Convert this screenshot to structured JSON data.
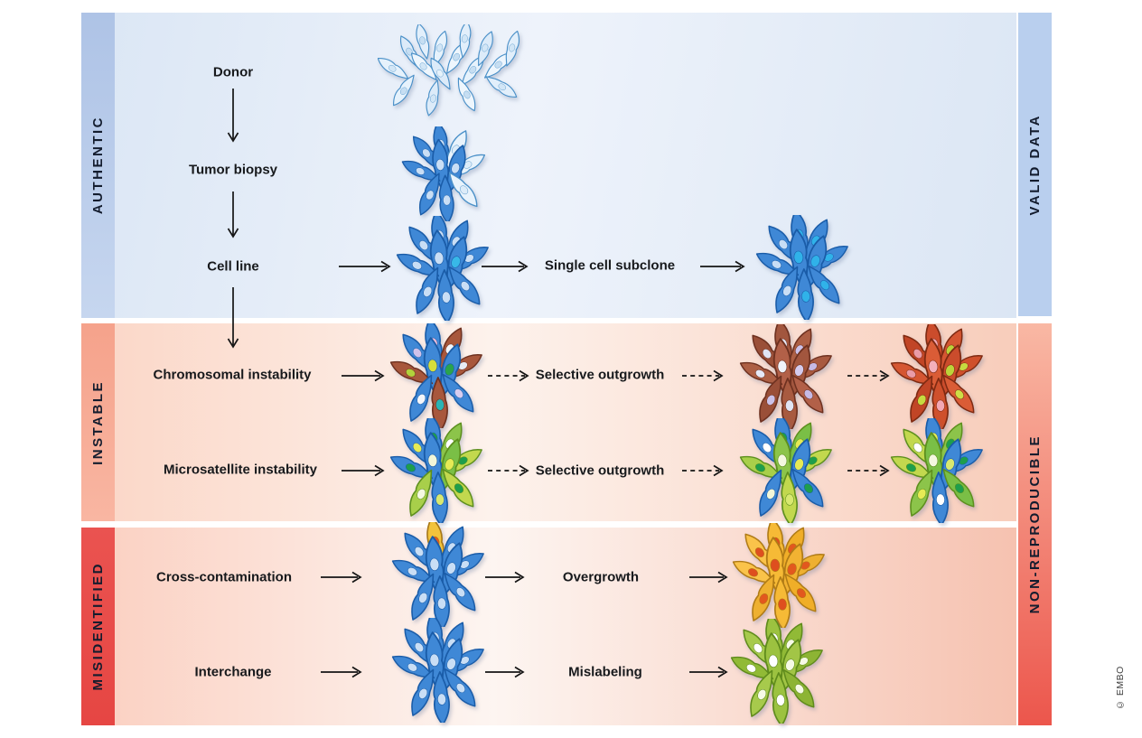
{
  "strips": {
    "authentic": "AUTHENTIC",
    "instable": "INSTABLE",
    "misidentified": "MISIDENTIFIED",
    "valid_data": "VALID DATA",
    "non_reproducible": "NON-REPRODUCIBLE"
  },
  "labels": {
    "donor": "Donor",
    "tumor_biopsy": "Tumor biopsy",
    "cell_line": "Cell line",
    "single_cell_subclone": "Single cell subclone",
    "chromosomal_instability": "Chromosomal instability",
    "selective_outgrowth_1": "Selective outgrowth",
    "microsatellite_instability": "Microsatellite instability",
    "selective_outgrowth_2": "Selective outgrowth",
    "cross_contamination": "Cross-contamination",
    "overgrowth": "Overgrowth",
    "interchange": "Interchange",
    "mislabeling": "Mislabeling"
  },
  "credit": "© EMBO",
  "palette": {
    "authentic_strip_top": "#aec3e6",
    "authentic_strip_bottom": "#c6d6ef",
    "valid_strip": "#b9cfee",
    "instable_strip_top": "#f5a28b",
    "instable_strip_bottom": "#f9b6a2",
    "misidentified_strip_top": "#ea5350",
    "misidentified_strip_bottom": "#e64643",
    "nonrep_top": "#f9b8a4",
    "nonrep_bottom": "#ec564c",
    "band1_left": "#dce7f5",
    "band1_mid": "#eef3fb",
    "band1_right": "#dbe6f4",
    "band2_left": "#fbd8c9",
    "band2_mid": "#fdf2ec",
    "band2_right": "#f8cdbb",
    "band3_left": "#fbd2c4",
    "band3_mid": "#fdf5f1",
    "band3_right": "#f6c2b0",
    "arrow": "#141414",
    "label_text": "#17191c",
    "strip_text": "#131c2e",
    "credit_text": "#3f3f3f"
  },
  "clusters": {
    "donor": {
      "layout": "wide",
      "cells": [
        [
          "#e6f2fc",
          "#d2e6f6",
          "#4a90c8"
        ],
        [
          "#dcebf9",
          "#c6def2",
          "#4a90c8"
        ],
        [
          "#eef6fd",
          "#d2e6f6",
          "#4a90c8"
        ],
        [
          "#e2effb",
          "#c6def2",
          "#4a90c8"
        ],
        [
          "#e6f2fc",
          "#d2e6f6",
          "#4a90c8"
        ],
        [
          "#dcebf9",
          "#e6f2fa",
          "#4a90c8"
        ],
        [
          "#eef6fd",
          "#c6def2",
          "#4a90c8"
        ],
        [
          "#e2effb",
          "#d2e6f6",
          "#4a90c8"
        ],
        [
          "#e6f2fc",
          "#c6def2",
          "#4a90c8"
        ],
        [
          "#dcebf9",
          "#d2e6f6",
          "#4a90c8"
        ],
        [
          "#eef6fd",
          "#c6def2",
          "#4a90c8"
        ],
        [
          "#e2effb",
          "#d2e6f6",
          "#4a90c8"
        ],
        [
          "#e6f2fc",
          "#c6def2",
          "#4a90c8"
        ],
        [
          "#dcebf9",
          "#d2e6f6",
          "#4a90c8"
        ],
        [
          "#eef6fd",
          "#c6def2",
          "#4a90c8"
        ],
        [
          "#e2effb",
          "#d2e6f6",
          "#4a90c8"
        ]
      ]
    },
    "tumor_biopsy": {
      "layout": "std",
      "cells": [
        [
          "#3f88d6",
          "#c9def5",
          "#1a5ca8"
        ],
        [
          "#e8f3fc",
          "#dcecf9",
          "#4a90c8"
        ],
        [
          "#3f88d6",
          "#c9def5",
          "#1a5ca8"
        ],
        [
          "#e8f3fc",
          "#dcecf9",
          "#4a90c8"
        ],
        [
          "#3f88d6",
          "#c9def5",
          "#1a5ca8"
        ],
        [
          "#3f88d6",
          "#c9def5",
          "#1a5ca8"
        ],
        [
          "#3f88d6",
          "#c9def5",
          "#1a5ca8"
        ],
        [
          "#3f88d6",
          "#c9def5",
          "#1a5ca8"
        ],
        [
          "#3f88d6",
          "#c9def5",
          "#1a5ca8"
        ],
        [
          "#e8f3fc",
          "#dcecf9",
          "#4a90c8"
        ]
      ]
    },
    "cell_line": {
      "layout": "std",
      "cells": [
        [
          "#3f88d6",
          "#c9def5",
          "#1a5ca8"
        ],
        [
          "#3f88d6",
          "#c9def5",
          "#1a5ca8"
        ],
        [
          "#3f88d6",
          "#c9def5",
          "#1a5ca8"
        ],
        [
          "#3f88d6",
          "#c9def5",
          "#1a5ca8"
        ],
        [
          "#3f88d6",
          "#c9def5",
          "#1a5ca8"
        ],
        [
          "#3f88d6",
          "#38b8e8",
          "#1a5ca8"
        ],
        [
          "#3f88d6",
          "#c9def5",
          "#1a5ca8"
        ],
        [
          "#3f88d6",
          "#c9def5",
          "#1a5ca8"
        ],
        [
          "#3f88d6",
          "#c9def5",
          "#1a5ca8"
        ],
        [
          "#3f88d6",
          "#c9def5",
          "#1a5ca8"
        ]
      ]
    },
    "single_cell_subclone": {
      "layout": "std",
      "cells": [
        [
          "#3f88d6",
          "#30b2e9",
          "#1a5ca8"
        ],
        [
          "#3f88d6",
          "#30b2e9",
          "#1a5ca8"
        ],
        [
          "#3f88d6",
          "#c9def5",
          "#1a5ca8"
        ],
        [
          "#3f88d6",
          "#30b2e9",
          "#1a5ca8"
        ],
        [
          "#3f88d6",
          "#30b2e9",
          "#1a5ca8"
        ],
        [
          "#3f88d6",
          "#30b2e9",
          "#1a5ca8"
        ],
        [
          "#3f88d6",
          "#c9def5",
          "#1a5ca8"
        ],
        [
          "#3f88d6",
          "#c9def5",
          "#1a5ca8"
        ],
        [
          "#3f88d6",
          "#30b2e9",
          "#1a5ca8"
        ],
        [
          "#3f88d6",
          "#30b2e9",
          "#1a5ca8"
        ]
      ]
    },
    "chromosomal_instability": {
      "layout": "std",
      "cells": [
        [
          "#3f88d6",
          "#f0bcd8",
          "#1a5ca8"
        ],
        [
          "#a8573c",
          "#f2f4f8",
          "#6e3120"
        ],
        [
          "#3f88d6",
          "#cfc2ea",
          "#1a5ca8"
        ],
        [
          "#a8573c",
          "#e8ecf4",
          "#6e3120"
        ],
        [
          "#3f88d6",
          "#d6de3a",
          "#1a5ca8"
        ],
        [
          "#3f88d6",
          "#2aa34e",
          "#1a5ca8"
        ],
        [
          "#a8573c",
          "#b2d23c",
          "#6e3120"
        ],
        [
          "#3f88d6",
          "#f4f6fa",
          "#1a5ca8"
        ],
        [
          "#a8573c",
          "#2ab4b4",
          "#6e3120"
        ],
        [
          "#3f88d6",
          "#d8cdef",
          "#1a5ca8"
        ]
      ]
    },
    "cin_outgrowth_1": {
      "layout": "std",
      "cells": [
        [
          "#a2563e",
          "#e6e9f7",
          "#6e3120"
        ],
        [
          "#ad5f44",
          "#ccc2e9",
          "#6e3120"
        ],
        [
          "#9a4f38",
          "#e0e5f4",
          "#6e3120"
        ],
        [
          "#a85a40",
          "#c6bae5",
          "#6e3120"
        ],
        [
          "#b26048",
          "#f0f2fb",
          "#6e3120"
        ],
        [
          "#a2563e",
          "#d4cbee",
          "#6e3120"
        ],
        [
          "#ad5f44",
          "#e6e9f7",
          "#6e3120"
        ],
        [
          "#9a4f38",
          "#ccc2e9",
          "#6e3120"
        ],
        [
          "#a85a40",
          "#e0e5f4",
          "#6e3120"
        ],
        [
          "#b26048",
          "#c6bae5",
          "#6e3120"
        ]
      ]
    },
    "cin_outgrowth_2": {
      "layout": "std",
      "cells": [
        [
          "#cb4c2c",
          "#f2a8b4",
          "#7e2a12"
        ],
        [
          "#d55632",
          "#bcd33a",
          "#7e2a12"
        ],
        [
          "#c14526",
          "#ea9ca8",
          "#7e2a12"
        ],
        [
          "#cf502c",
          "#c6da40",
          "#7e2a12"
        ],
        [
          "#da5c36",
          "#f4b0bc",
          "#7e2a12"
        ],
        [
          "#cb4c2c",
          "#bcd33a",
          "#7e2a12"
        ],
        [
          "#d55632",
          "#ea9ca8",
          "#7e2a12"
        ],
        [
          "#c14526",
          "#c6da40",
          "#7e2a12"
        ],
        [
          "#cf502c",
          "#f2a8b4",
          "#7e2a12"
        ],
        [
          "#da5c36",
          "#cede46",
          "#7e2a12"
        ]
      ]
    },
    "microsatellite_instability": {
      "layout": "std",
      "cells": [
        [
          "#3f88d6",
          "#1e9e4c",
          "#1a5ca8"
        ],
        [
          "#8cc44a",
          "#ffffff",
          "#5d8f1e"
        ],
        [
          "#3f88d6",
          "#e6ea55",
          "#1a5ca8"
        ],
        [
          "#c2d84e",
          "#1e9e4c",
          "#5d8f1e"
        ],
        [
          "#3f88d6",
          "#f2f6d8",
          "#1a5ca8"
        ],
        [
          "#7abf46",
          "#e6ea55",
          "#5d8f1e"
        ],
        [
          "#3f88d6",
          "#1e9e4c",
          "#1a5ca8"
        ],
        [
          "#a8cf4a",
          "#f4f8e0",
          "#5d8f1e"
        ],
        [
          "#3f88d6",
          "#d8e870",
          "#1a5ca8"
        ],
        [
          "#c2d84e",
          "#1e9e4c",
          "#5d8f1e"
        ]
      ]
    },
    "msi_outgrowth_1": {
      "layout": "std",
      "cells": [
        [
          "#3f88d6",
          "#1e9e4c",
          "#1a5ca8"
        ],
        [
          "#7abf46",
          "#e6ea55",
          "#5d8f1e"
        ],
        [
          "#3f88d6",
          "#ffffff",
          "#1a5ca8"
        ],
        [
          "#c2d84e",
          "#1e9e4c",
          "#5d8f1e"
        ],
        [
          "#8cc44a",
          "#f4f8e0",
          "#5d8f1e"
        ],
        [
          "#3f88d6",
          "#e6ea55",
          "#1a5ca8"
        ],
        [
          "#a8cf4a",
          "#1e9e4c",
          "#5d8f1e"
        ],
        [
          "#3f88d6",
          "#f2f6d8",
          "#1a5ca8"
        ],
        [
          "#c2d84e",
          "#d8e870",
          "#5d8f1e"
        ],
        [
          "#3f88d6",
          "#1e9e4c",
          "#1a5ca8"
        ]
      ]
    },
    "msi_outgrowth_2": {
      "layout": "std",
      "cells": [
        [
          "#3f88d6",
          "#e6ea55",
          "#1a5ca8"
        ],
        [
          "#8cc44a",
          "#1e9e4c",
          "#5d8f1e"
        ],
        [
          "#c2d84e",
          "#ffffff",
          "#5d8f1e"
        ],
        [
          "#3f88d6",
          "#1e9e4c",
          "#1a5ca8"
        ],
        [
          "#7abf46",
          "#f4f8e0",
          "#5d8f1e"
        ],
        [
          "#3f88d6",
          "#d8e870",
          "#1a5ca8"
        ],
        [
          "#c2d84e",
          "#1e9e4c",
          "#5d8f1e"
        ],
        [
          "#8cc44a",
          "#e6ea55",
          "#5d8f1e"
        ],
        [
          "#3f88d6",
          "#ffffff",
          "#1a5ca8"
        ],
        [
          "#7abf46",
          "#1e9e4c",
          "#5d8f1e"
        ]
      ]
    },
    "cross_contamination": {
      "layout": "std",
      "cells": [
        [
          "#f2c33c",
          "#e2571c",
          "#a87818"
        ],
        [
          "#3f88d6",
          "#c9def5",
          "#1a5ca8"
        ],
        [
          "#3f88d6",
          "#c9def5",
          "#1a5ca8"
        ],
        [
          "#3f88d6",
          "#c9def5",
          "#1a5ca8"
        ],
        [
          "#3f88d6",
          "#c9def5",
          "#1a5ca8"
        ],
        [
          "#3f88d6",
          "#c9def5",
          "#1a5ca8"
        ],
        [
          "#3f88d6",
          "#c9def5",
          "#1a5ca8"
        ],
        [
          "#3f88d6",
          "#c9def5",
          "#1a5ca8"
        ],
        [
          "#3f88d6",
          "#c9def5",
          "#1a5ca8"
        ],
        [
          "#3f88d6",
          "#c9def5",
          "#1a5ca8"
        ]
      ]
    },
    "overgrowth": {
      "layout": "std",
      "cells": [
        [
          "#f6ba36",
          "#de4f1f",
          "#b07b16"
        ],
        [
          "#f0ae28",
          "#e2581e",
          "#b07b16"
        ],
        [
          "#fac34a",
          "#de4f1f",
          "#b07b16"
        ],
        [
          "#eeb030",
          "#e2581e",
          "#b07b16"
        ],
        [
          "#f6ba36",
          "#de4f1f",
          "#b07b16"
        ],
        [
          "#f2b232",
          "#e2581e",
          "#b07b16"
        ],
        [
          "#fac34a",
          "#de4f1f",
          "#b07b16"
        ],
        [
          "#eeb030",
          "#e2581e",
          "#b07b16"
        ],
        [
          "#f6ba36",
          "#de4f1f",
          "#b07b16"
        ],
        [
          "#f0ae28",
          "#e2581e",
          "#b07b16"
        ]
      ]
    },
    "interchange": {
      "layout": "std",
      "cells": [
        [
          "#3f88d6",
          "#c9def5",
          "#1a5ca8"
        ],
        [
          "#3f88d6",
          "#c9def5",
          "#1a5ca8"
        ],
        [
          "#3f88d6",
          "#c9def5",
          "#1a5ca8"
        ],
        [
          "#3f88d6",
          "#c9def5",
          "#1a5ca8"
        ],
        [
          "#3f88d6",
          "#c9def5",
          "#1a5ca8"
        ],
        [
          "#3f88d6",
          "#c9def5",
          "#1a5ca8"
        ],
        [
          "#3f88d6",
          "#c9def5",
          "#1a5ca8"
        ],
        [
          "#3f88d6",
          "#c9def5",
          "#1a5ca8"
        ],
        [
          "#3f88d6",
          "#c9def5",
          "#1a5ca8"
        ],
        [
          "#3f88d6",
          "#c9def5",
          "#1a5ca8"
        ]
      ]
    },
    "mislabeling": {
      "layout": "std",
      "cells": [
        [
          "#9cc240",
          "#ffffff",
          "#5f8b1c"
        ],
        [
          "#91ba36",
          "#f6fae6",
          "#5f8b1c"
        ],
        [
          "#a7ca4c",
          "#ffffff",
          "#5f8b1c"
        ],
        [
          "#8db434",
          "#f6fae6",
          "#5f8b1c"
        ],
        [
          "#9cc240",
          "#ffffff",
          "#5f8b1c"
        ],
        [
          "#a2c546",
          "#f6fae6",
          "#5f8b1c"
        ],
        [
          "#91ba36",
          "#ffffff",
          "#5f8b1c"
        ],
        [
          "#a7ca4c",
          "#f6fae6",
          "#5f8b1c"
        ],
        [
          "#9cc240",
          "#ffffff",
          "#5f8b1c"
        ],
        [
          "#8db434",
          "#f6fae6",
          "#5f8b1c"
        ]
      ]
    }
  }
}
